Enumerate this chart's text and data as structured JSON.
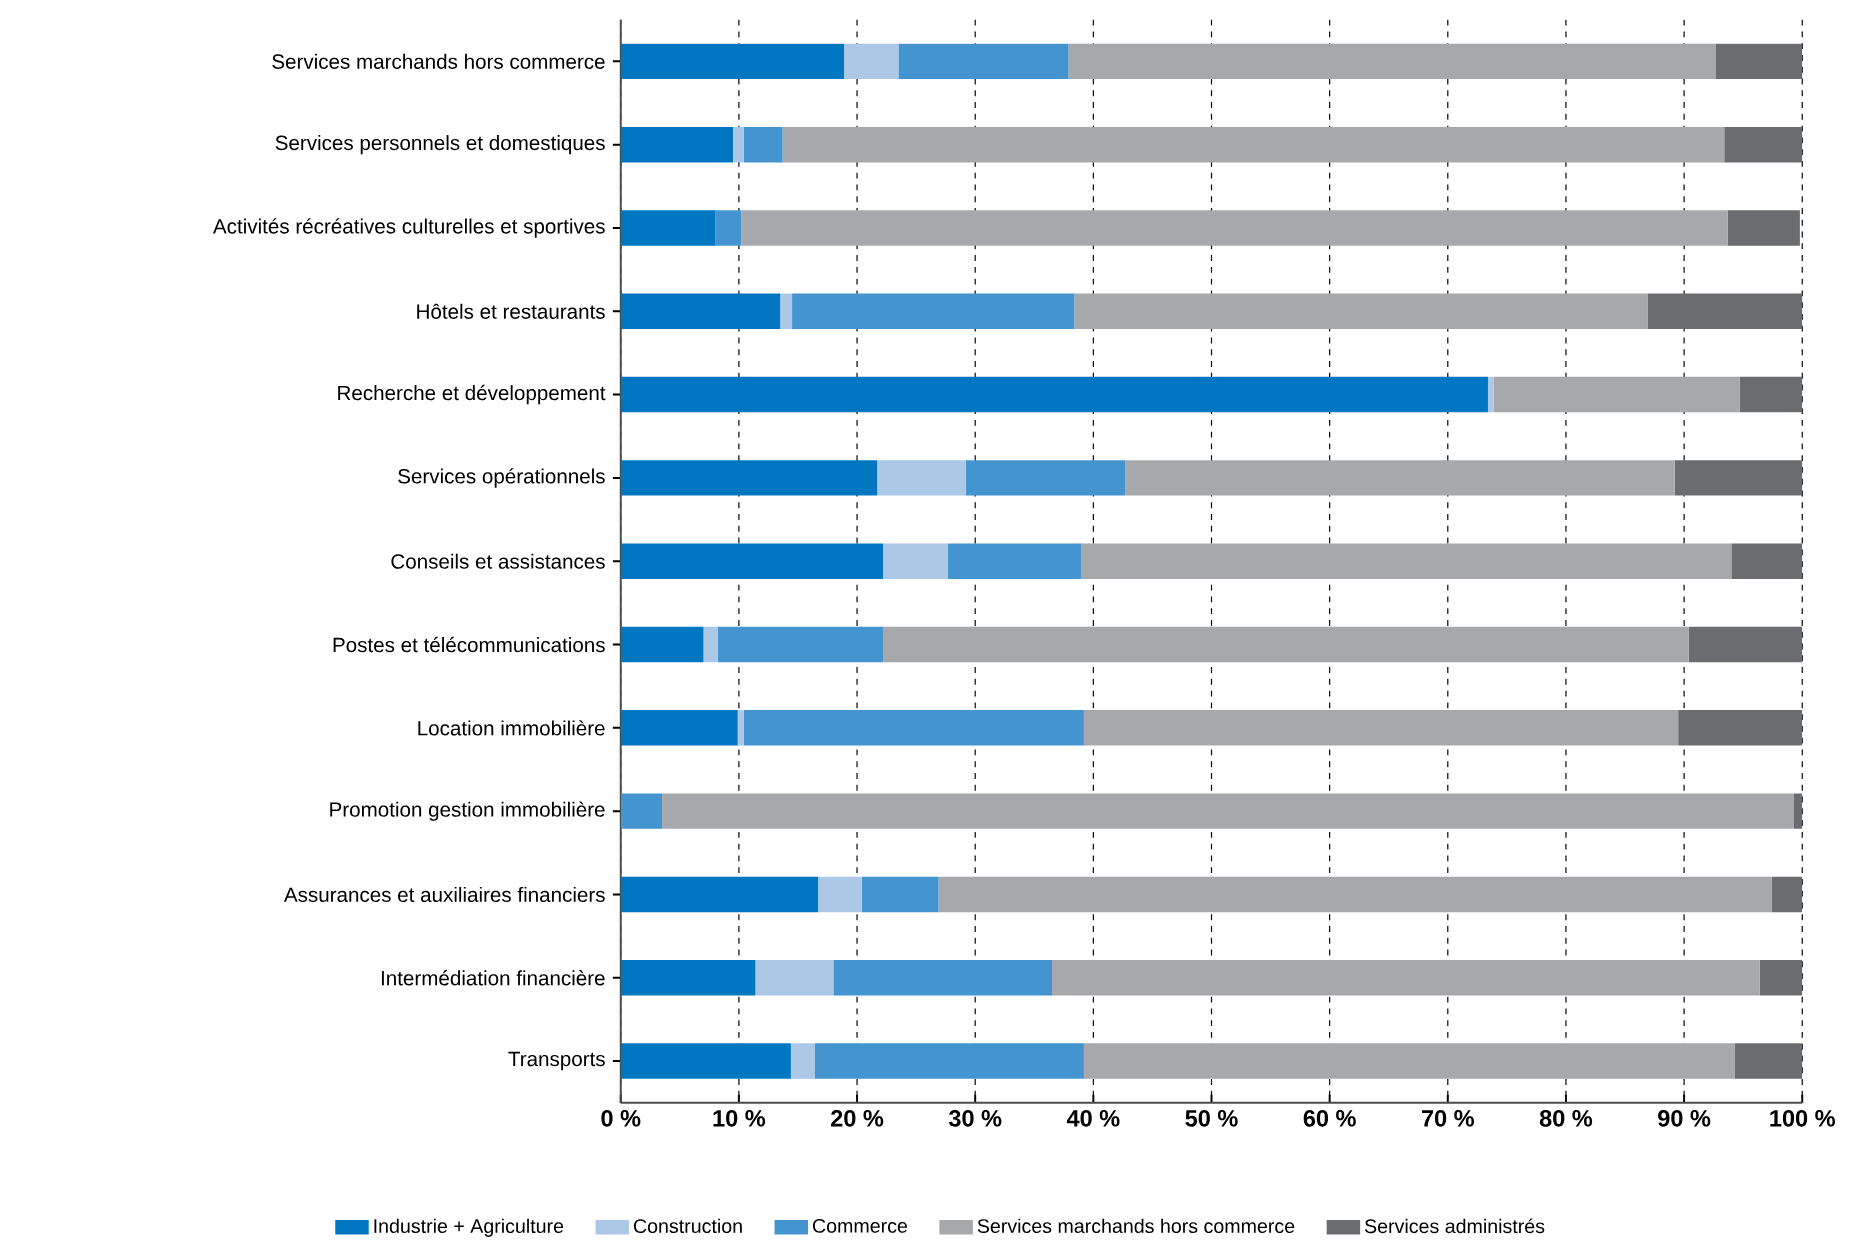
{
  "chart_data": {
    "type": "bar",
    "orientation": "horizontal",
    "stacked": true,
    "categories": [
      "Services marchands hors commerce",
      "Services personnels et domestiques",
      "Activités récréatives culturelles et sportives",
      "Hôtels et restaurants",
      "Recherche et développement",
      "Services opérationnels",
      "Conseils et assistances",
      "Postes et télécommunications",
      "Location immobilière",
      "Promotion gestion immobilière",
      "Assurances et auxiliaires financiers",
      "Intermédiation financière",
      "Transports"
    ],
    "series": [
      {
        "name": "Industrie + Agriculture",
        "color": "#0077c0",
        "values": [
          18.9,
          9.5,
          8.0,
          13.5,
          73.4,
          21.7,
          22.2,
          7.0,
          9.9,
          0,
          16.7,
          11.4,
          14.4
        ]
      },
      {
        "name": "Construction",
        "color": "#adc8e6",
        "values": [
          4.6,
          0.9,
          null,
          1.0,
          0.5,
          7.5,
          5.5,
          1.2,
          0.5,
          0,
          3.7,
          6.6,
          2.0
        ]
      },
      {
        "name": "Commerce",
        "color": "#4394cf",
        "values": [
          14.4,
          3.3,
          2.2,
          23.9,
          0,
          13.5,
          11.3,
          14.0,
          28.8,
          3.5,
          6.5,
          18.5,
          22.8
        ]
      },
      {
        "name": "Services marchands hors commerce",
        "color": "#a7a8ac",
        "values": [
          54.8,
          79.7,
          83.5,
          48.5,
          20.8,
          46.5,
          55.0,
          68.2,
          50.3,
          95.8,
          70.5,
          59.9,
          55.1
        ]
      },
      {
        "name": "Services administrés",
        "color": "#6b6c70",
        "values": [
          7.3,
          6.6,
          6.1,
          13.1,
          5.3,
          10.8,
          6.0,
          9.6,
          10.5,
          0.7,
          2.6,
          3.6,
          5.7
        ]
      }
    ],
    "xlim": [
      0,
      100
    ],
    "xticks": [
      {
        "value": 0,
        "label": "0 %"
      },
      {
        "value": 10,
        "label": "10 %"
      },
      {
        "value": 20,
        "label": "20 %"
      },
      {
        "value": 30,
        "label": "30 %"
      },
      {
        "value": 40,
        "label": "40 %"
      },
      {
        "value": 50,
        "label": "50 %"
      },
      {
        "value": 60,
        "label": "60 %"
      },
      {
        "value": 70,
        "label": "70 %"
      },
      {
        "value": 80,
        "label": "80 %"
      },
      {
        "value": 90,
        "label": "90 %"
      },
      {
        "value": 100,
        "label": "100 %"
      }
    ],
    "grid": "x",
    "legend": "bottom"
  }
}
